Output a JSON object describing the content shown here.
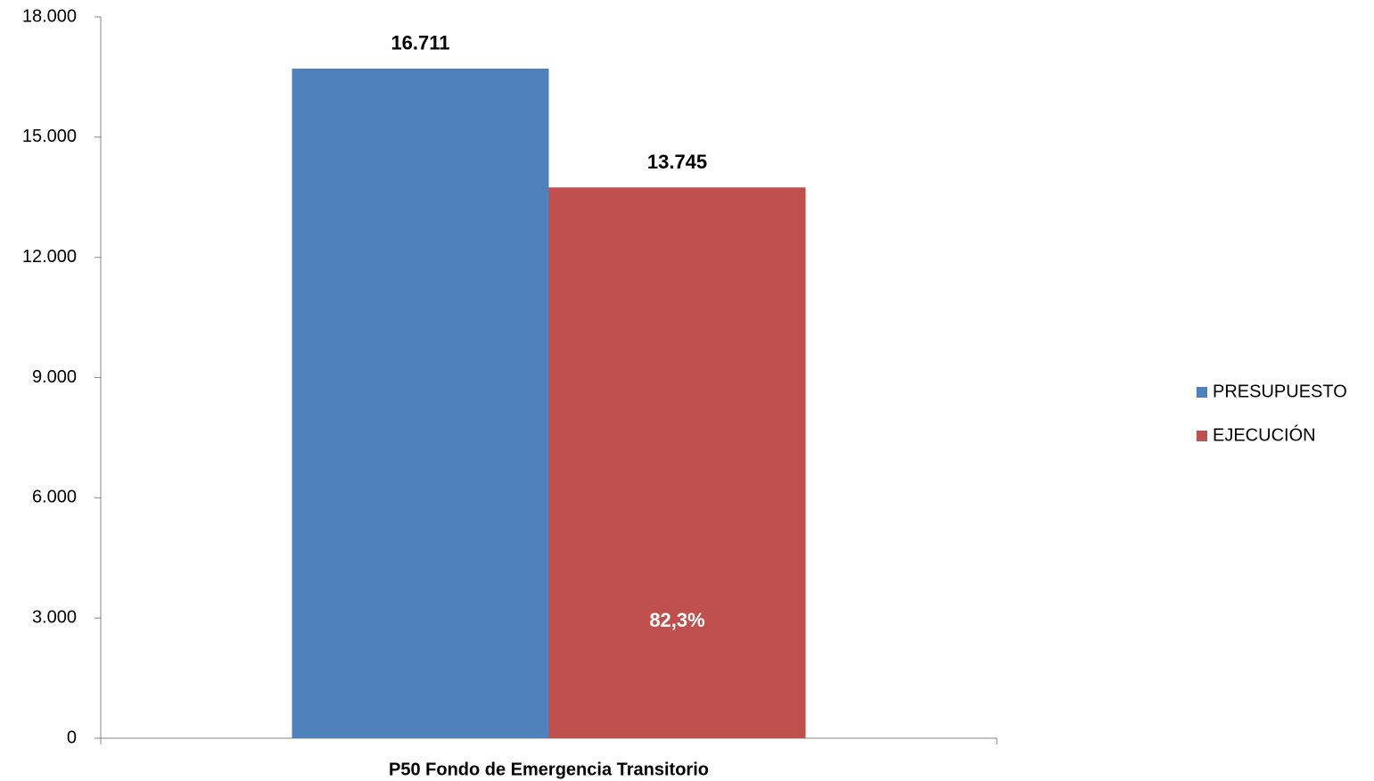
{
  "chart_data": {
    "type": "bar",
    "categories": [
      "P50 Fondo de Emergencia Transitorio"
    ],
    "series": [
      {
        "name": "PRESUPUESTO",
        "color": "#4f81bd",
        "values": [
          16711
        ],
        "value_labels": [
          "16.711"
        ]
      },
      {
        "name": "EJECUCIÓN",
        "color": "#c0504d",
        "values": [
          13745
        ],
        "value_labels": [
          "13.745"
        ]
      }
    ],
    "annotation": "82,3%",
    "ylim": [
      0,
      18000
    ],
    "yticks": [
      0,
      {
        "value": 3000,
        "label": "3.000"
      },
      {
        "value": 6000,
        "label": "6.000"
      },
      {
        "value": 9000,
        "label": "9.000"
      },
      {
        "value": 12000,
        "label": "12.000"
      },
      {
        "value": 15000,
        "label": "15.000"
      },
      {
        "value": 18000,
        "label": "18.000"
      }
    ],
    "grid": false,
    "legend": "right"
  }
}
